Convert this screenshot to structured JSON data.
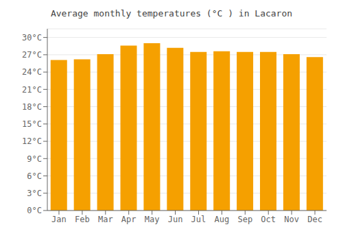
{
  "chart_data": {
    "type": "bar",
    "title": "Average monthly temperatures (°C ) in Lacaron",
    "categories": [
      "Jan",
      "Feb",
      "Mar",
      "Apr",
      "May",
      "Jun",
      "Jul",
      "Aug",
      "Sep",
      "Oct",
      "Nov",
      "Dec"
    ],
    "values": [
      26.1,
      26.2,
      27.1,
      28.6,
      29.0,
      28.2,
      27.5,
      27.6,
      27.5,
      27.5,
      27.1,
      26.6
    ],
    "color": "#F5A000",
    "ylim": [
      0,
      31.5
    ],
    "yticks": [
      {
        "value": 0,
        "label": "0°C"
      },
      {
        "value": 3,
        "label": "3°C"
      },
      {
        "value": 6,
        "label": "6°C"
      },
      {
        "value": 9,
        "label": "9°C"
      },
      {
        "value": 12,
        "label": "12°C"
      },
      {
        "value": 15,
        "label": "15°C"
      },
      {
        "value": 18,
        "label": "18°C"
      },
      {
        "value": 21,
        "label": "21°C"
      },
      {
        "value": 24,
        "label": "24°C"
      },
      {
        "value": 27,
        "label": "27°C"
      },
      {
        "value": 30,
        "label": "30°C"
      }
    ],
    "grid": true
  }
}
